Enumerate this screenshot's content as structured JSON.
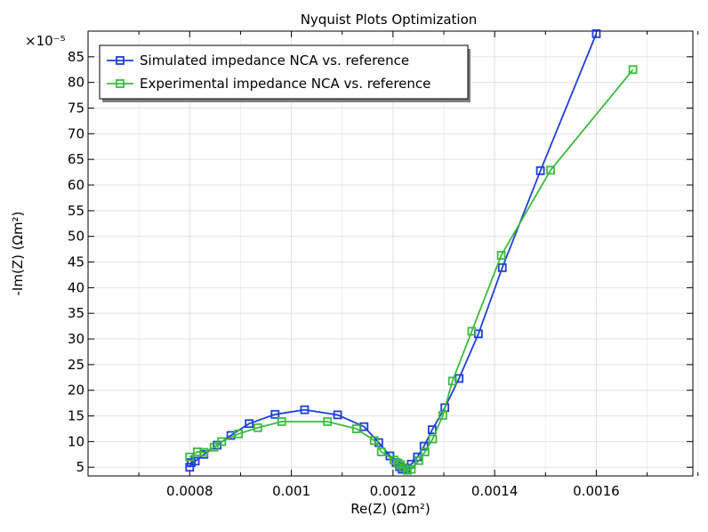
{
  "chart_data": {
    "type": "line",
    "title": "Nyquist Plots Optimization",
    "xlabel": "Re(Z) (Ωm²)",
    "ylabel": "-Im(Z) (Ωm²)",
    "y_multiplier": "×10⁻⁵",
    "xlim": [
      0.0006,
      0.00179
    ],
    "ylim": [
      3.3,
      90
    ],
    "grid": true,
    "legend_position": "top-left",
    "x_ticks": [
      {
        "v": 0.0008,
        "label": "0.0008"
      },
      {
        "v": 0.001,
        "label": "0.001"
      },
      {
        "v": 0.0012,
        "label": "0.0012"
      },
      {
        "v": 0.0014,
        "label": "0.0014"
      },
      {
        "v": 0.0016,
        "label": "0.0016"
      }
    ],
    "x_minor": [
      0.0006,
      0.0007,
      0.0009,
      0.0011,
      0.0013,
      0.0015,
      0.0017,
      0.0018
    ],
    "y_ticks": [
      {
        "v": 5,
        "label": "5"
      },
      {
        "v": 10,
        "label": "10"
      },
      {
        "v": 15,
        "label": "15"
      },
      {
        "v": 20,
        "label": "20"
      },
      {
        "v": 25,
        "label": "25"
      },
      {
        "v": 30,
        "label": "30"
      },
      {
        "v": 35,
        "label": "35"
      },
      {
        "v": 40,
        "label": "40"
      },
      {
        "v": 45,
        "label": "45"
      },
      {
        "v": 50,
        "label": "50"
      },
      {
        "v": 55,
        "label": "55"
      },
      {
        "v": 60,
        "label": "60"
      },
      {
        "v": 65,
        "label": "65"
      },
      {
        "v": 70,
        "label": "70"
      },
      {
        "v": 75,
        "label": "75"
      },
      {
        "v": 80,
        "label": "80"
      },
      {
        "v": 85,
        "label": "85"
      }
    ],
    "series": [
      {
        "name": "Simulated impedance NCA vs. reference",
        "color": "#1f3fdc",
        "x": [
          0.0008,
          0.000803,
          0.000811,
          0.000828,
          0.000854,
          0.000881,
          0.000917,
          0.000968,
          0.001026,
          0.001091,
          0.001143,
          0.001172,
          0.001194,
          0.001206,
          0.001213,
          0.001218,
          0.001226,
          0.001236,
          0.001248,
          0.001261,
          0.001277,
          0.001302,
          0.00133,
          0.001368,
          0.001415,
          0.00149,
          0.0016
        ],
        "y": [
          5.0,
          5.9,
          6.2,
          7.5,
          9.3,
          11.2,
          13.5,
          15.3,
          16.2,
          15.2,
          12.9,
          9.8,
          7.2,
          5.9,
          5.1,
          4.6,
          4.8,
          5.6,
          7.0,
          9.1,
          12.3,
          16.6,
          22.3,
          31.0,
          43.9,
          62.8,
          89.5
        ]
      },
      {
        "name": "Experimental impedance NCA vs. reference",
        "color": "#3cbb3c",
        "x": [
          0.0008,
          0.000815,
          0.000828,
          0.000848,
          0.000863,
          0.000896,
          0.000934,
          0.000981,
          0.001071,
          0.001128,
          0.001163,
          0.001177,
          0.001202,
          0.00121,
          0.001215,
          0.00122,
          0.001228,
          0.001236,
          0.001251,
          0.001263,
          0.001278,
          0.001298,
          0.001317,
          0.001355,
          0.001413,
          0.00151,
          0.001672
        ],
        "y": [
          7.0,
          8.0,
          7.9,
          8.9,
          10.0,
          11.5,
          12.7,
          13.9,
          13.9,
          12.5,
          10.2,
          8.0,
          6.4,
          5.8,
          5.5,
          4.9,
          4.4,
          4.6,
          6.3,
          8.0,
          10.5,
          15.1,
          21.8,
          31.5,
          46.3,
          62.9,
          82.5
        ]
      }
    ]
  }
}
